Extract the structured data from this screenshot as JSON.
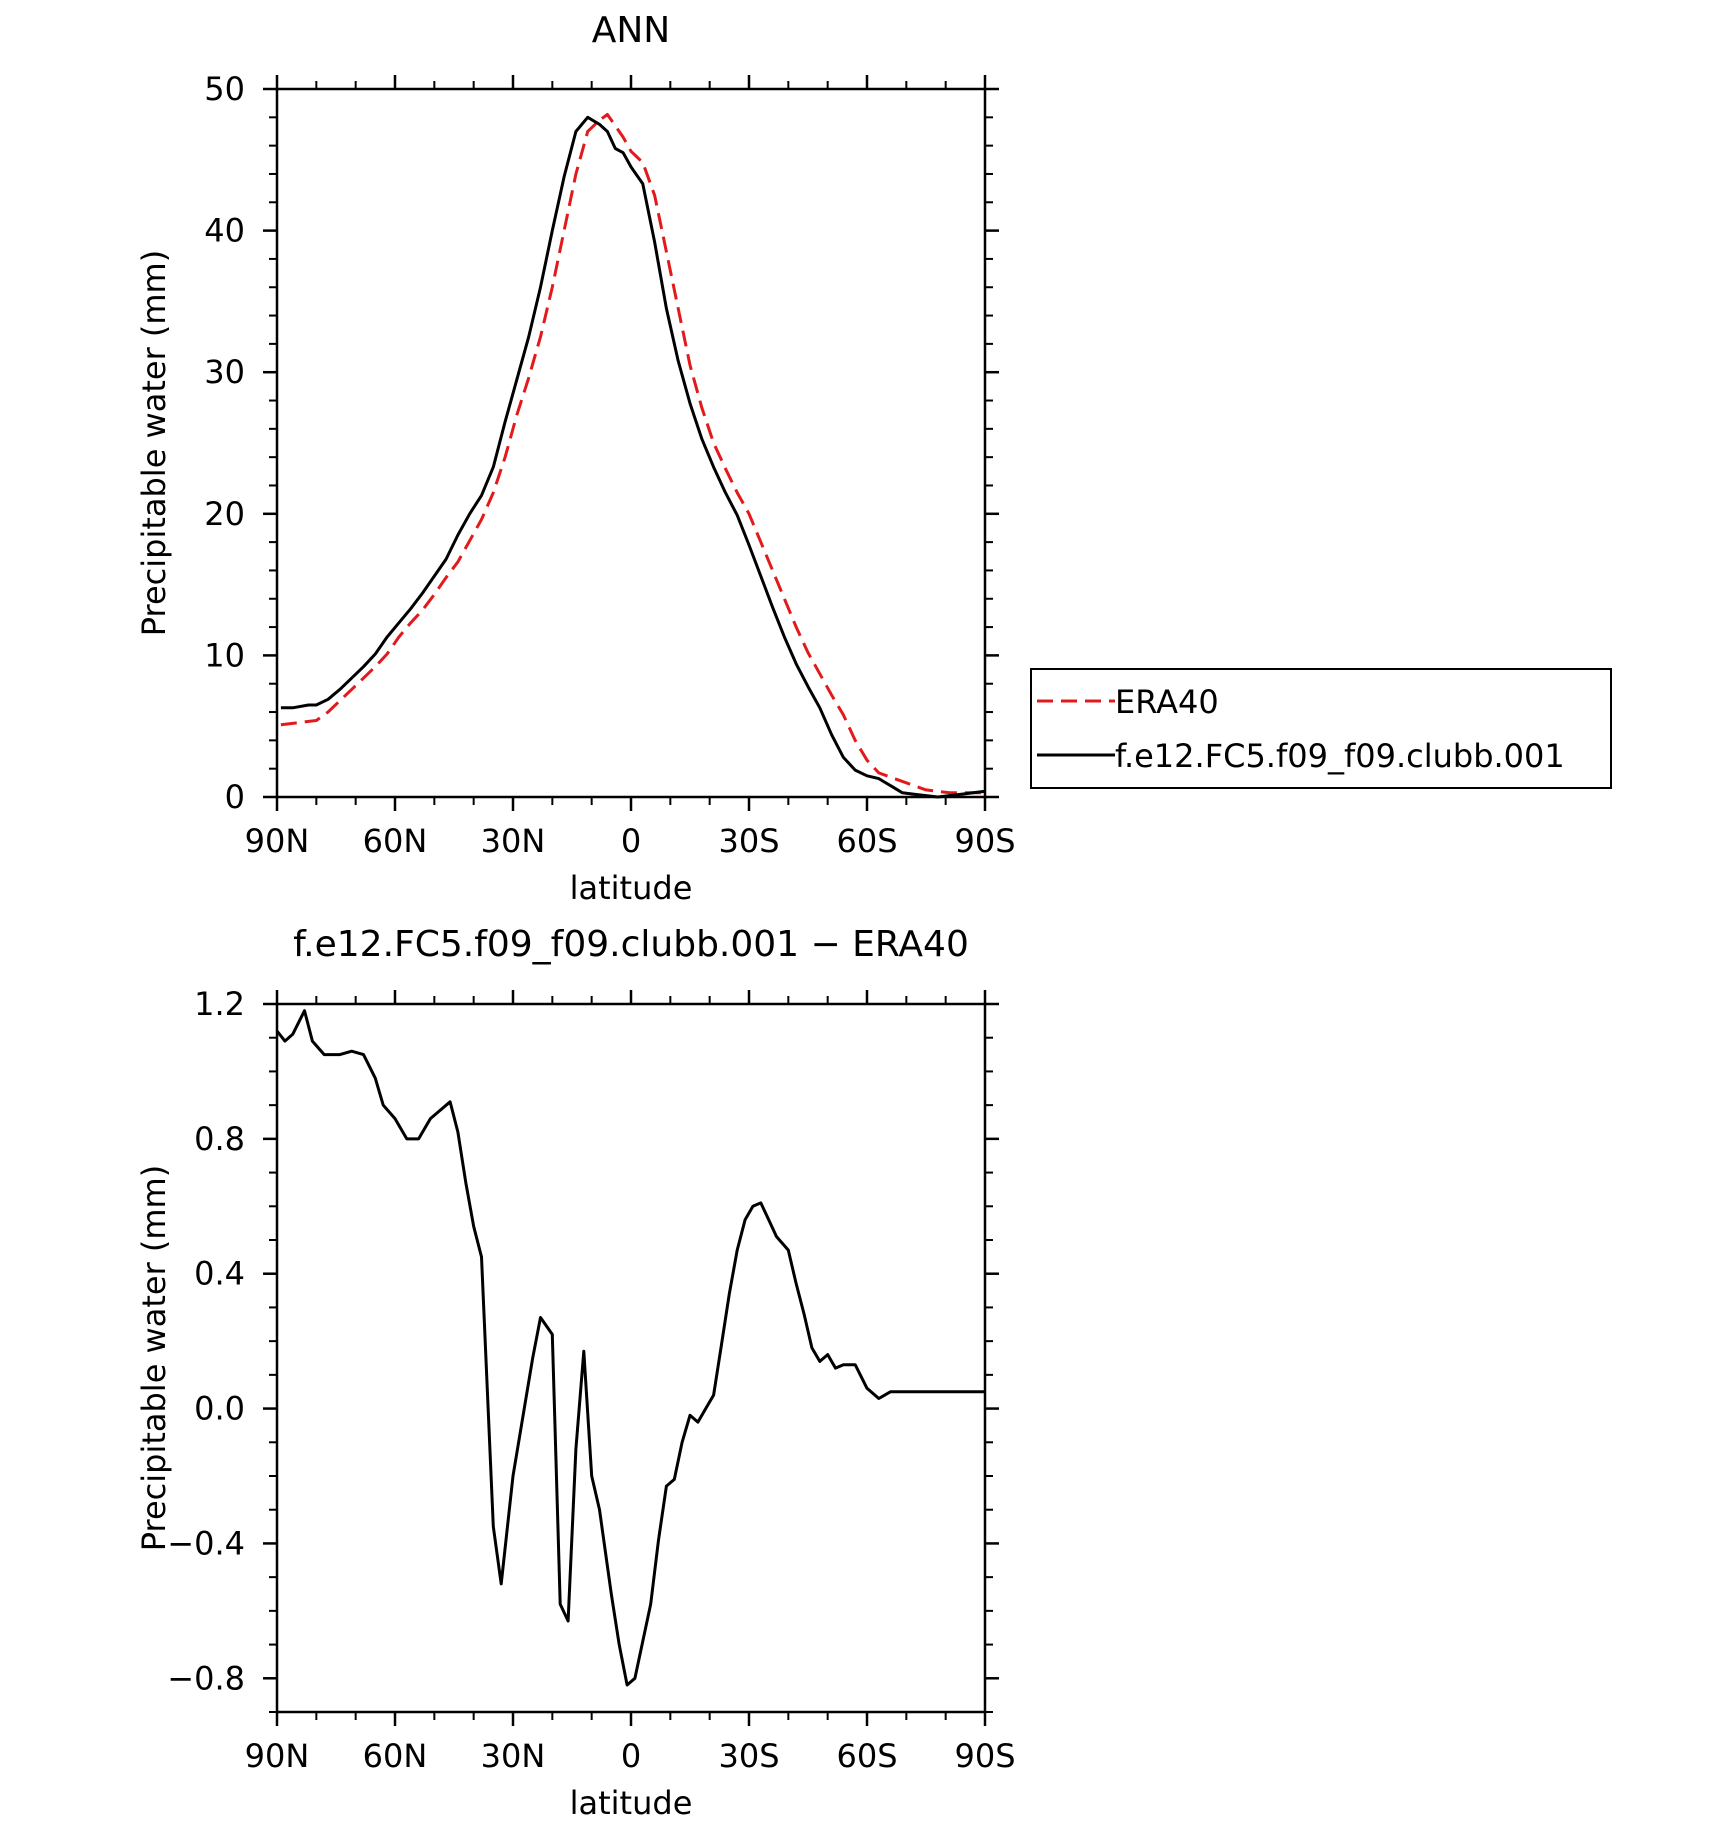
{
  "chart_data": [
    {
      "type": "line",
      "title": "ANN",
      "xlabel": "latitude",
      "ylabel": "Precipitable water (mm)",
      "xlim": [
        90,
        -90
      ],
      "ylim": [
        0,
        50
      ],
      "x_ticks": [
        90,
        60,
        30,
        0,
        -30,
        -60,
        -90
      ],
      "x_tick_labels": [
        "90N",
        "60N",
        "30N",
        "0",
        "30S",
        "60S",
        "90S"
      ],
      "y_ticks": [
        0,
        10,
        20,
        30,
        40,
        50
      ],
      "y_tick_labels": [
        "0",
        "10",
        "20",
        "30",
        "40",
        "50"
      ],
      "legend": "right",
      "series": [
        {
          "name": "ERA40",
          "color": "#e31a1c",
          "dash": "dashed",
          "x": [
            89,
            86,
            80,
            77,
            74,
            71,
            68,
            65,
            62,
            59,
            56,
            53,
            50,
            47,
            44,
            41,
            38,
            35,
            32,
            29,
            26,
            23,
            20,
            17,
            14,
            11,
            8,
            6,
            4,
            2,
            0,
            -3,
            -6,
            -9,
            -12,
            -15,
            -18,
            -21,
            -24,
            -27,
            -30,
            -33,
            -36,
            -39,
            -42,
            -45,
            -48,
            -51,
            -54,
            -57,
            -60,
            -63,
            -66,
            -69,
            -72,
            -75,
            -78,
            -81,
            -84,
            -87,
            -90
          ],
          "y": [
            5.1,
            5.2,
            5.4,
            6.0,
            6.8,
            7.6,
            8.4,
            9.2,
            10.1,
            11.3,
            12.3,
            13.2,
            14.3,
            15.5,
            16.6,
            18.1,
            19.6,
            21.5,
            24.0,
            27.0,
            29.6,
            32.5,
            36.0,
            40.0,
            44.0,
            47.0,
            47.8,
            48.2,
            47.4,
            46.6,
            45.6,
            44.8,
            42.5,
            38.5,
            34.5,
            30.5,
            27.5,
            25.0,
            23.2,
            21.5,
            20.0,
            18.0,
            16.0,
            14.0,
            12.0,
            10.2,
            8.7,
            7.2,
            5.8,
            4.0,
            2.6,
            1.7,
            1.4,
            1.1,
            0.8,
            0.5,
            0.4,
            0.3,
            0.3,
            0.3,
            0.3
          ]
        },
        {
          "name": "f.e12.FC5.f09_f09.clubb.001",
          "color": "#000000",
          "dash": "solid",
          "x": [
            89,
            86,
            82,
            80,
            77,
            74,
            71,
            68,
            65,
            62,
            59,
            56,
            53,
            50,
            47,
            44,
            41,
            38,
            35,
            32,
            29,
            26,
            23,
            20,
            17,
            14,
            11,
            8,
            6,
            4,
            2,
            0,
            -3,
            -6,
            -9,
            -12,
            -15,
            -18,
            -21,
            -24,
            -27,
            -30,
            -33,
            -36,
            -39,
            -42,
            -45,
            -48,
            -51,
            -54,
            -57,
            -60,
            -63,
            -66,
            -69,
            -72,
            -75,
            -78,
            -81,
            -84,
            -87,
            -90
          ],
          "y": [
            6.3,
            6.3,
            6.5,
            6.5,
            6.9,
            7.6,
            8.4,
            9.2,
            10.1,
            11.3,
            12.3,
            13.3,
            14.4,
            15.6,
            16.8,
            18.5,
            20.0,
            21.3,
            23.3,
            26.5,
            29.5,
            32.5,
            36.0,
            40.0,
            43.8,
            47.0,
            48.0,
            47.5,
            47.0,
            45.8,
            45.5,
            44.5,
            43.3,
            39.2,
            34.5,
            30.8,
            27.8,
            25.3,
            23.3,
            21.5,
            19.9,
            17.8,
            15.6,
            13.4,
            11.3,
            9.4,
            7.8,
            6.3,
            4.4,
            2.8,
            1.9,
            1.5,
            1.3,
            0.8,
            0.3,
            0.2,
            0.1,
            0.0,
            0.1,
            0.2,
            0.3,
            0.4
          ]
        }
      ]
    },
    {
      "type": "line",
      "title": "f.e12.FC5.f09_f09.clubb.001 − ERA40",
      "xlabel": "latitude",
      "ylabel": "Precipitable water (mm)",
      "xlim": [
        90,
        -90
      ],
      "ylim": [
        -0.9,
        1.2
      ],
      "x_ticks": [
        90,
        60,
        30,
        0,
        -30,
        -60,
        -90
      ],
      "x_tick_labels": [
        "90N",
        "60N",
        "30N",
        "0",
        "30S",
        "60S",
        "90S"
      ],
      "y_ticks": [
        1.2,
        0.8,
        0.4,
        0.0,
        -0.4,
        -0.8
      ],
      "y_tick_labels": [
        "1.2",
        "0.8",
        "0.4",
        "0.0",
        "−0.4",
        "−0.8"
      ],
      "series": [
        {
          "color": "#000000",
          "dash": "solid",
          "x": [
            90,
            88,
            86,
            83,
            81,
            78,
            74,
            71,
            68,
            65,
            63,
            60,
            57,
            54,
            51,
            49,
            46,
            44,
            42,
            40,
            38,
            35,
            33,
            30,
            27,
            25,
            23,
            20,
            18,
            16,
            14,
            12,
            10,
            8,
            5,
            3,
            1,
            -1,
            -3,
            -5,
            -7,
            -9,
            -11,
            -13,
            -15,
            -17,
            -19,
            -21,
            -23,
            -25,
            -27,
            -29,
            -31,
            -33,
            -35,
            -37,
            -40,
            -42,
            -44,
            -46,
            -48,
            -50,
            -52,
            -54,
            -57,
            -60,
            -63,
            -66,
            -69,
            -72,
            -75,
            -78,
            -81,
            -84,
            -87,
            -90
          ],
          "y": [
            1.12,
            1.09,
            1.11,
            1.18,
            1.09,
            1.05,
            1.05,
            1.06,
            1.05,
            0.98,
            0.9,
            0.86,
            0.8,
            0.8,
            0.86,
            0.88,
            0.91,
            0.82,
            0.67,
            0.54,
            0.45,
            -0.35,
            -0.52,
            -0.2,
            0.01,
            0.15,
            0.27,
            0.22,
            -0.58,
            -0.63,
            -0.12,
            0.17,
            -0.2,
            -0.3,
            -0.55,
            -0.7,
            -0.82,
            -0.8,
            -0.69,
            -0.58,
            -0.39,
            -0.23,
            -0.21,
            -0.1,
            -0.02,
            -0.04,
            0.0,
            0.04,
            0.19,
            0.34,
            0.47,
            0.56,
            0.6,
            0.61,
            0.56,
            0.51,
            0.47,
            0.37,
            0.28,
            0.18,
            0.14,
            0.16,
            0.12,
            0.13,
            0.13,
            0.06,
            0.03,
            0.05,
            0.05,
            0.05,
            0.05,
            0.05,
            0.05,
            0.05,
            0.05,
            0.05
          ]
        }
      ]
    }
  ]
}
